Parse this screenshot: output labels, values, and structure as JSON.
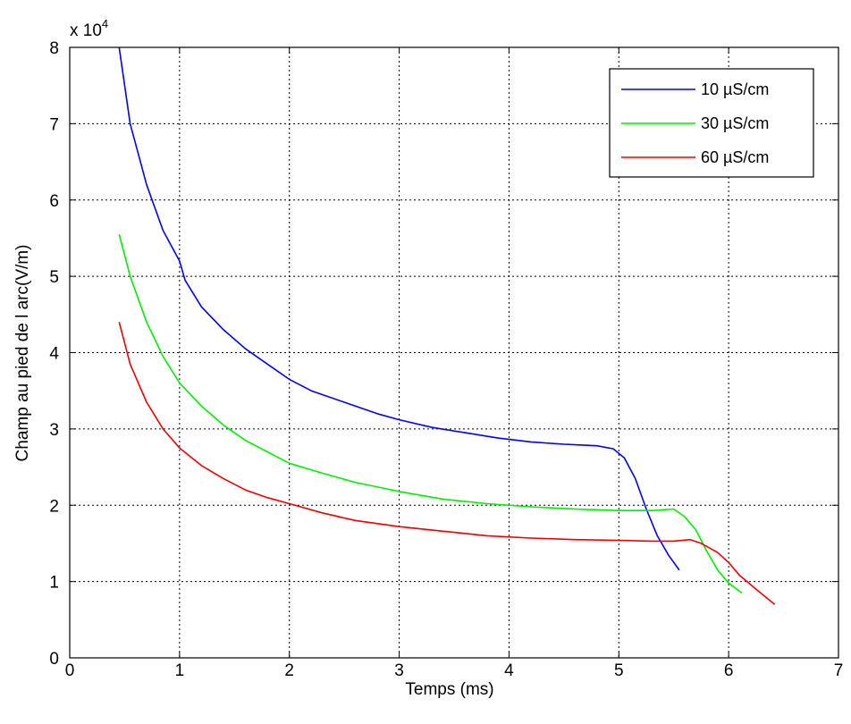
{
  "chart_data": {
    "type": "line",
    "xlabel": "Temps  (ms)",
    "ylabel": "Champ  au pied de l arc(V/m)",
    "scale_label": {
      "base": "x 10",
      "exponent": "4"
    },
    "xlim": [
      0,
      7
    ],
    "ylim": [
      0,
      8
    ],
    "x_ticks": [
      "0",
      "1",
      "2",
      "3",
      "4",
      "5",
      "6",
      "7"
    ],
    "y_ticks": [
      "0",
      "1",
      "2",
      "3",
      "4",
      "5",
      "6",
      "7",
      "8"
    ],
    "grid": true,
    "legend_position": "top-right",
    "series": [
      {
        "name": "10 µS/cm",
        "color": "#0000ff",
        "x": [
          0.45,
          0.55,
          0.7,
          0.85,
          1.0,
          1.05,
          1.2,
          1.4,
          1.6,
          1.8,
          2.0,
          2.2,
          2.5,
          2.8,
          3.0,
          3.3,
          3.6,
          3.9,
          4.2,
          4.5,
          4.8,
          4.95,
          5.05,
          5.15,
          5.25,
          5.35,
          5.45,
          5.55
        ],
        "y": [
          8.0,
          7.0,
          6.2,
          5.6,
          5.2,
          4.95,
          4.6,
          4.3,
          4.05,
          3.85,
          3.65,
          3.5,
          3.35,
          3.2,
          3.12,
          3.02,
          2.95,
          2.88,
          2.83,
          2.8,
          2.78,
          2.74,
          2.62,
          2.35,
          1.95,
          1.6,
          1.35,
          1.15
        ]
      },
      {
        "name": "30 µS/cm",
        "color": "#00ee00",
        "x": [
          0.45,
          0.55,
          0.7,
          0.85,
          1.0,
          1.2,
          1.4,
          1.6,
          1.8,
          2.0,
          2.3,
          2.6,
          3.0,
          3.4,
          3.8,
          4.2,
          4.6,
          5.0,
          5.3,
          5.5,
          5.6,
          5.7,
          5.8,
          5.9,
          6.0,
          6.12
        ],
        "y": [
          5.55,
          5.0,
          4.4,
          3.95,
          3.6,
          3.3,
          3.05,
          2.85,
          2.7,
          2.55,
          2.42,
          2.3,
          2.18,
          2.08,
          2.02,
          1.98,
          1.95,
          1.93,
          1.93,
          1.95,
          1.85,
          1.68,
          1.4,
          1.15,
          0.98,
          0.85
        ]
      },
      {
        "name": "60 µS/cm",
        "color": "#ee0000",
        "x": [
          0.45,
          0.55,
          0.7,
          0.85,
          1.0,
          1.2,
          1.4,
          1.6,
          1.8,
          2.0,
          2.3,
          2.6,
          3.0,
          3.4,
          3.8,
          4.2,
          4.6,
          5.0,
          5.3,
          5.5,
          5.65,
          5.75,
          5.9,
          6.0,
          6.1,
          6.25,
          6.42
        ],
        "y": [
          4.4,
          3.85,
          3.35,
          3.0,
          2.75,
          2.52,
          2.35,
          2.2,
          2.1,
          2.02,
          1.9,
          1.8,
          1.72,
          1.66,
          1.6,
          1.57,
          1.55,
          1.54,
          1.53,
          1.53,
          1.55,
          1.5,
          1.38,
          1.25,
          1.08,
          0.9,
          0.7
        ]
      }
    ]
  }
}
